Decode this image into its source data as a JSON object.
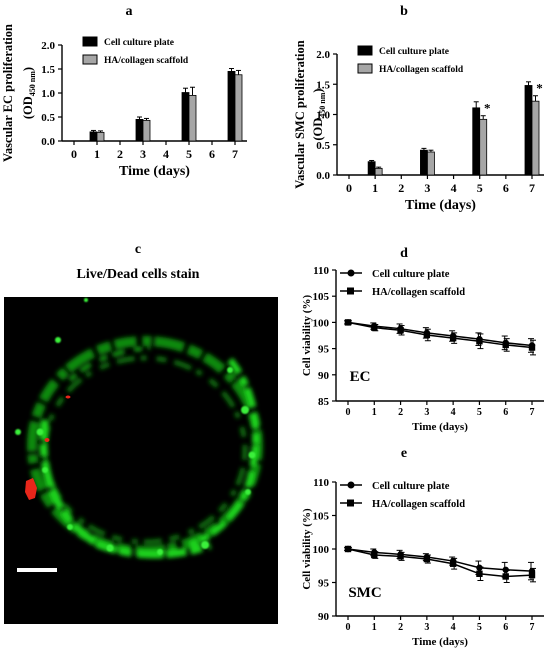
{
  "panels": {
    "a": {
      "letter": "a"
    },
    "b": {
      "letter": "b"
    },
    "c": {
      "letter": "c",
      "title": "Live/Dead cells stain"
    },
    "d": {
      "letter": "d",
      "inset_label": "EC"
    },
    "e": {
      "letter": "e",
      "inset_label": "SMC"
    }
  },
  "colors": {
    "black": "#000000",
    "gray": "#a6a6a6",
    "live": "#1fd31f",
    "dead": "#e8261a"
  },
  "chart_data": [
    {
      "id": "a",
      "type": "bar",
      "title": "",
      "xlabel": "Time (days)",
      "ylabel_main": "Vascular EC proliferation",
      "ylabel_unit": "(OD",
      "ylabel_sub": "450 nm",
      "ylabel_close": ")",
      "xticks": [
        "0",
        "1",
        "2",
        "3",
        "4",
        "5",
        "6",
        "7"
      ],
      "yticks": [
        "0.0",
        "0.5",
        "1.0",
        "1.5",
        "2.0"
      ],
      "ylim": [
        0,
        2.0
      ],
      "categories": [
        "1",
        "3",
        "5",
        "7"
      ],
      "series": [
        {
          "name": "Cell culture plate",
          "color": "#000000",
          "values": [
            0.19,
            0.45,
            1.01,
            1.45
          ],
          "errors": [
            0.03,
            0.05,
            0.09,
            0.06
          ]
        },
        {
          "name": "HA/collagen scaffold",
          "color": "#a6a6a6",
          "values": [
            0.18,
            0.43,
            0.95,
            1.38
          ],
          "errors": [
            0.03,
            0.04,
            0.17,
            0.09
          ]
        }
      ],
      "annotations": [],
      "legend": "top-left"
    },
    {
      "id": "b",
      "type": "bar",
      "title": "",
      "xlabel": "Time (days)",
      "ylabel_main": "Vascular SMC proliferation",
      "ylabel_unit": "(OD",
      "ylabel_sub": "450 nm",
      "ylabel_close": ")",
      "xticks": [
        "0",
        "1",
        "2",
        "3",
        "4",
        "5",
        "6",
        "7"
      ],
      "yticks": [
        "0.0",
        "0.5",
        "1.0",
        "1.5",
        "2.0"
      ],
      "ylim": [
        0,
        2.0
      ],
      "categories": [
        "1",
        "3",
        "5",
        "7"
      ],
      "series": [
        {
          "name": "Cell culture plate",
          "color": "#000000",
          "values": [
            0.22,
            0.41,
            1.11,
            1.48
          ],
          "errors": [
            0.02,
            0.03,
            0.1,
            0.06
          ]
        },
        {
          "name": "HA/collagen scaffold",
          "color": "#a6a6a6",
          "values": [
            0.11,
            0.38,
            0.92,
            1.22
          ],
          "errors": [
            0.02,
            0.03,
            0.06,
            0.09
          ]
        }
      ],
      "annotations": [
        {
          "text": "*",
          "category": "5",
          "series": 1
        },
        {
          "text": "*",
          "category": "7",
          "series": 1
        }
      ],
      "legend": "top-left"
    },
    {
      "id": "d",
      "type": "line",
      "title": "",
      "xlabel": "Time (days)",
      "ylabel": "Cell viability (%)",
      "xticks": [
        "0",
        "1",
        "2",
        "3",
        "4",
        "5",
        "6",
        "7"
      ],
      "yticks": [
        "85",
        "90",
        "95",
        "100",
        "105",
        "110"
      ],
      "ylim": [
        85,
        110
      ],
      "x": [
        0,
        1,
        2,
        3,
        4,
        5,
        6,
        7
      ],
      "series": [
        {
          "name": "Cell culture plate",
          "marker": "circle",
          "values": [
            100,
            99.3,
            98.8,
            98.0,
            97.4,
            96.8,
            96.1,
            95.6
          ],
          "errors": [
            0.3,
            0.6,
            0.9,
            1.0,
            1.0,
            1.2,
            1.3,
            1.3
          ]
        },
        {
          "name": "HA/collagen scaffold",
          "marker": "square",
          "values": [
            100,
            99.0,
            98.5,
            97.6,
            97.0,
            96.4,
            95.7,
            95.2
          ],
          "errors": [
            0.3,
            0.6,
            0.9,
            1.1,
            1.0,
            1.4,
            1.2,
            1.4
          ]
        }
      ],
      "legend": "top-left"
    },
    {
      "id": "e",
      "type": "line",
      "title": "",
      "xlabel": "Time (days)",
      "ylabel": "Cell viability (%)",
      "xticks": [
        "0",
        "1",
        "2",
        "3",
        "4",
        "5",
        "6",
        "7"
      ],
      "yticks": [
        "90",
        "95",
        "100",
        "105",
        "110"
      ],
      "ylim": [
        90,
        110
      ],
      "x": [
        0,
        1,
        2,
        3,
        4,
        5,
        6,
        7
      ],
      "series": [
        {
          "name": "Cell culture plate",
          "marker": "circle",
          "values": [
            100,
            99.5,
            99.2,
            98.8,
            98.2,
            97.2,
            96.9,
            96.7
          ],
          "errors": [
            0.2,
            0.5,
            0.6,
            0.5,
            0.6,
            1.0,
            1.1,
            1.3
          ]
        },
        {
          "name": "HA/collagen scaffold",
          "marker": "square",
          "values": [
            100,
            99.1,
            98.9,
            98.5,
            97.8,
            96.3,
            95.9,
            96.1
          ],
          "errors": [
            0.2,
            0.5,
            0.6,
            0.6,
            0.8,
            1.0,
            0.9,
            1.0
          ]
        }
      ],
      "legend": "top-left"
    }
  ]
}
